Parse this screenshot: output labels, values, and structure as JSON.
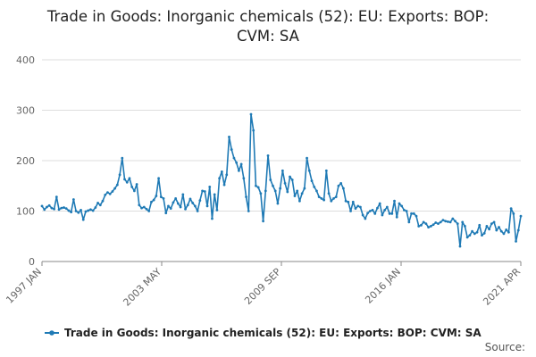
{
  "chart_data": {
    "type": "line",
    "title_lines": [
      "Trade in Goods: Inorganic chemicals (52): EU: Exports: BOP:",
      "CVM: SA"
    ],
    "xlabel": "",
    "ylabel": "",
    "ylim": [
      0,
      400
    ],
    "yticks": [
      "0",
      "100",
      "200",
      "300",
      "400"
    ],
    "xticks": [
      "1997 JAN",
      "2003 MAY",
      "2009 SEP",
      "2016 JAN",
      "2021 APR"
    ],
    "grid": "horizontal",
    "legend": "bottom",
    "source_label": "Source:",
    "colors": {
      "series": "#1f7ab5",
      "grid": "#dddddd"
    },
    "series": [
      {
        "name": "Trade in Goods: Inorganic chemicals (52): EU: Exports: BOP: CVM: SA",
        "x_start": "1997 JAN",
        "x_step": "quarter",
        "values": [
          110,
          103,
          108,
          111,
          106,
          104,
          128,
          103,
          106,
          107,
          105,
          101,
          98,
          123,
          100,
          97,
          102,
          83,
          99,
          101,
          103,
          101,
          107,
          116,
          112,
          120,
          132,
          137,
          134,
          139,
          145,
          152,
          172,
          205,
          163,
          157,
          165,
          148,
          140,
          153,
          112,
          106,
          108,
          104,
          100,
          118,
          122,
          130,
          165,
          128,
          125,
          96,
          110,
          105,
          117,
          125,
          115,
          108,
          133,
          104,
          112,
          124,
          116,
          110,
          100,
          121,
          140,
          139,
          110,
          148,
          85,
          133,
          102,
          165,
          178,
          152,
          172,
          247,
          222,
          205,
          196,
          180,
          193,
          165,
          128,
          100,
          292,
          260,
          150,
          147,
          135,
          80,
          140,
          210,
          162,
          150,
          140,
          115,
          145,
          180,
          155,
          138,
          168,
          162,
          130,
          140,
          120,
          135,
          145,
          205,
          180,
          160,
          148,
          140,
          128,
          125,
          122,
          180,
          135,
          120,
          125,
          128,
          150,
          155,
          145,
          120,
          118,
          100,
          118,
          105,
          110,
          108,
          92,
          85,
          96,
          100,
          102,
          95,
          106,
          115,
          92,
          102,
          108,
          95,
          95,
          120,
          88,
          115,
          110,
          102,
          100,
          78,
          95,
          95,
          90,
          70,
          72,
          78,
          75,
          68,
          70,
          73,
          77,
          75,
          78,
          82,
          80,
          79,
          78,
          85,
          80,
          75,
          30,
          78,
          70,
          48,
          52,
          60,
          55,
          58,
          72,
          52,
          56,
          70,
          64,
          75,
          78,
          62,
          68,
          60,
          55,
          63,
          58,
          105,
          95,
          40,
          62,
          90
        ]
      }
    ]
  }
}
